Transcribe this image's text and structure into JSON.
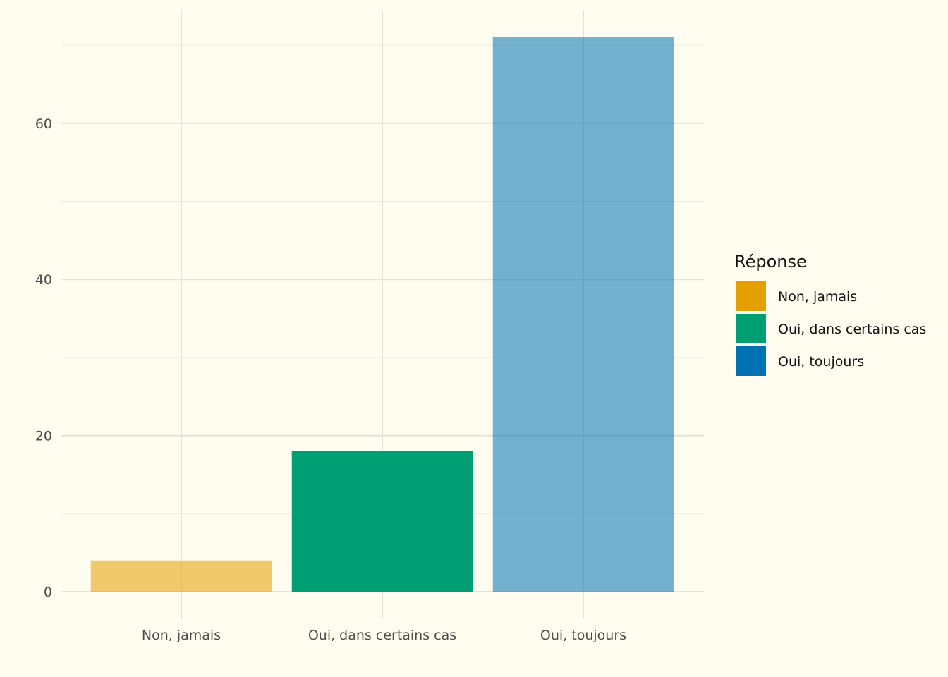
{
  "chart_data": {
    "type": "bar",
    "categories": [
      "Non, jamais",
      "Oui, dans certains cas",
      "Oui, toujours"
    ],
    "values": [
      4,
      18,
      71
    ],
    "title": "",
    "xlabel": "",
    "ylabel": "",
    "ylim": [
      0,
      74
    ],
    "yticks": [
      0,
      20,
      40,
      60
    ],
    "grid": true,
    "colors": [
      "#E69F00",
      "#009E73",
      "#0072B2"
    ],
    "bar_opacity": [
      0.55,
      1.0,
      0.55
    ],
    "legend": {
      "title": "Réponse",
      "position": "right",
      "items": [
        "Non, jamais",
        "Oui, dans certains cas",
        "Oui, toujours"
      ]
    }
  }
}
